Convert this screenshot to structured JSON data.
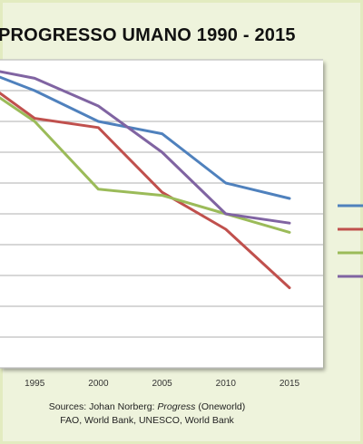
{
  "colors": {
    "frame_bg": "#eef3dc",
    "blue": "#4f81bd",
    "red": "#c0504d",
    "green": "#9bbb59",
    "purple": "#8064a2",
    "grid": "#bfbfbf"
  },
  "chart_data": {
    "type": "line",
    "title": "PROGRESSO UMANO 1990 - 2015",
    "x": [
      1990,
      1995,
      2000,
      2005,
      2010,
      2015
    ],
    "x_tick_labels": [
      "1995",
      "2000",
      "2005",
      "2010",
      "2015"
    ],
    "ylim": [
      0,
      10
    ],
    "grid": true,
    "legend_position": "right",
    "series": [
      {
        "color": "#4f81bd",
        "values": [
          9.8,
          9.0,
          8.0,
          7.6,
          6.0,
          5.5
        ]
      },
      {
        "color": "#c0504d",
        "values": [
          9.6,
          8.1,
          7.8,
          5.7,
          4.5,
          2.6
        ]
      },
      {
        "color": "#9bbb59",
        "values": [
          9.4,
          8.0,
          5.8,
          5.6,
          5.0,
          4.4
        ]
      },
      {
        "color": "#8064a2",
        "values": [
          9.8,
          9.4,
          8.5,
          7.0,
          5.0,
          4.7
        ]
      }
    ]
  },
  "sources": {
    "line1_prefix": "Sources: Johan Norberg: ",
    "line1_title": "Progress",
    "line1_suffix": " (Oneworld)",
    "line2": "FAO, World Bank, UNESCO, World Bank"
  }
}
